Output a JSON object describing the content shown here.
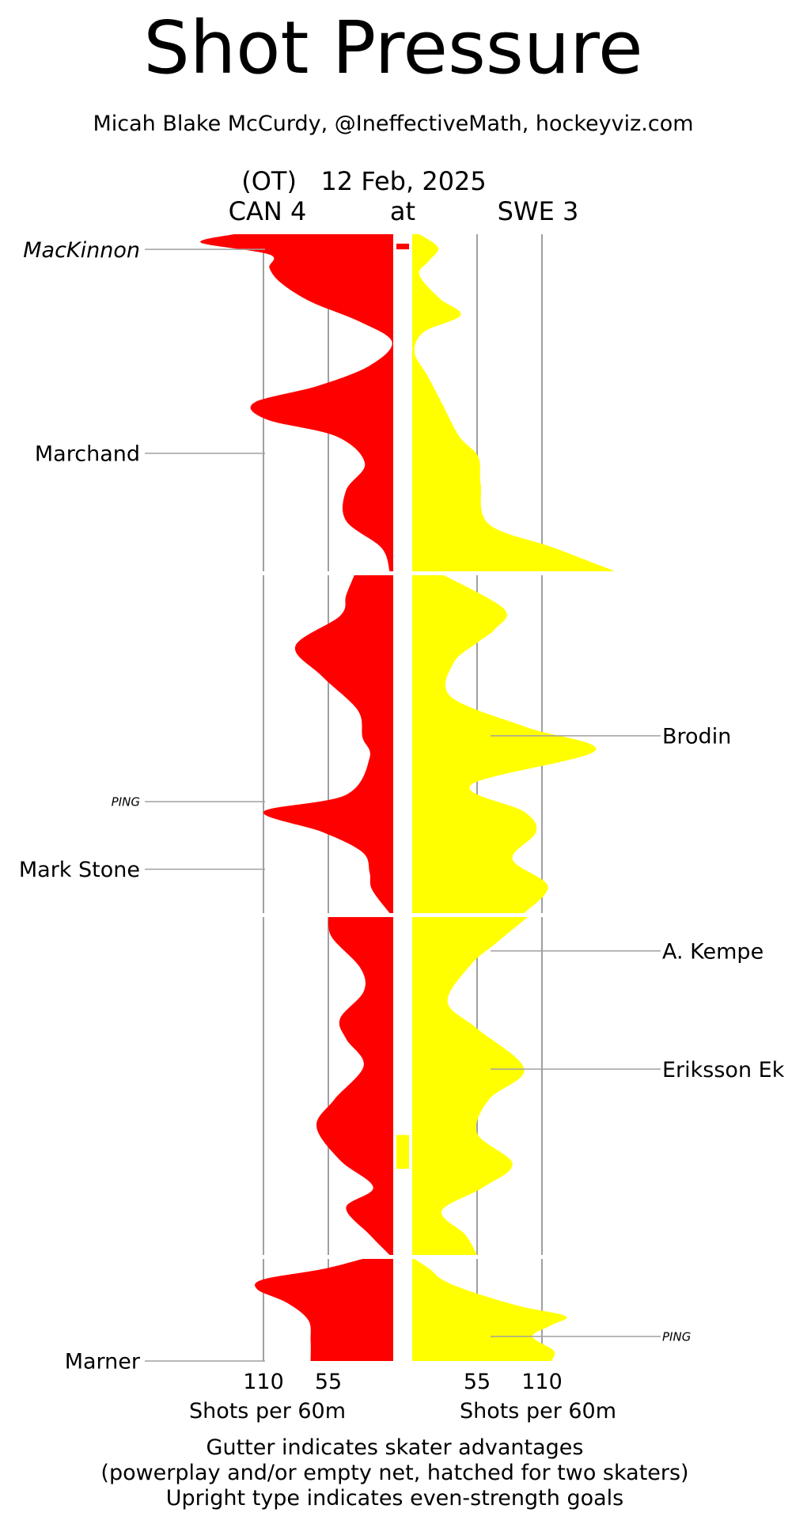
{
  "title": "Shot Pressure",
  "subtitle": "Micah Blake McCurdy, @IneffectiveMath, hockeyviz.com",
  "header": {
    "line1": "(OT)   12 Feb, 2025",
    "away": "CAN 4",
    "at": "at",
    "home": "SWE 3"
  },
  "colors": {
    "away": "#ff0000",
    "home": "#ffff00",
    "grid": "#a0a0a0"
  },
  "footer": {
    "line1": "Gutter indicates skater advantages",
    "line2": "(powerplay and/or empty net, hatched for two skaters)",
    "line3": "Upright type indicates even-strength goals"
  },
  "chart_data": {
    "type": "area",
    "orientation": "vertical",
    "periods": 4,
    "xlabel_left": "Shots per 60m",
    "xlabel_right": "Shots per 60m",
    "ticks_left": [
      110,
      55
    ],
    "ticks_right": [
      55,
      110
    ],
    "series": [
      {
        "name": "CAN 4",
        "side": "left",
        "unit": "shots per 60m",
        "periods": [
          [
            [
              0.0,
              135
            ],
            [
              0.025,
              163
            ],
            [
              0.06,
              105
            ],
            [
              0.1,
              105
            ],
            [
              0.145,
              95
            ],
            [
              0.2,
              70
            ],
            [
              0.26,
              28
            ],
            [
              0.32,
              1
            ],
            [
              0.39,
              20
            ],
            [
              0.45,
              64
            ],
            [
              0.5,
              118
            ],
            [
              0.55,
              107
            ],
            [
              0.6,
              48
            ],
            [
              0.68,
              24
            ],
            [
              0.76,
              40
            ],
            [
              0.85,
              40
            ],
            [
              0.93,
              10
            ],
            [
              1.0,
              3
            ]
          ],
          [
            [
              0.0,
              33
            ],
            [
              0.06,
              40
            ],
            [
              0.12,
              45
            ],
            [
              0.21,
              83
            ],
            [
              0.3,
              60
            ],
            [
              0.4,
              30
            ],
            [
              0.48,
              26
            ],
            [
              0.54,
              20
            ],
            [
              0.65,
              40
            ],
            [
              0.7,
              110
            ],
            [
              0.76,
              60
            ],
            [
              0.82,
              26
            ],
            [
              0.88,
              20
            ],
            [
              0.93,
              18
            ],
            [
              1.0,
              3
            ]
          ],
          [
            [
              0.0,
              55
            ],
            [
              0.06,
              52
            ],
            [
              0.15,
              28
            ],
            [
              0.22,
              25
            ],
            [
              0.3,
              45
            ],
            [
              0.36,
              40
            ],
            [
              0.44,
              25
            ],
            [
              0.54,
              50
            ],
            [
              0.62,
              65
            ],
            [
              0.72,
              45
            ],
            [
              0.8,
              17
            ],
            [
              0.86,
              40
            ],
            [
              0.94,
              20
            ],
            [
              1.0,
              3
            ]
          ],
          [
            [
              0.0,
              26
            ],
            [
              0.1,
              60
            ],
            [
              0.2,
              110
            ],
            [
              0.3,
              115
            ],
            [
              0.43,
              90
            ],
            [
              0.6,
              72
            ],
            [
              0.8,
              70
            ],
            [
              1.0,
              70
            ]
          ]
        ]
      },
      {
        "name": "SWE 3",
        "side": "right",
        "unit": "shots per 60m",
        "periods": [
          [
            [
              0.0,
              6
            ],
            [
              0.04,
              22
            ],
            [
              0.08,
              14
            ],
            [
              0.12,
              6
            ],
            [
              0.19,
              23
            ],
            [
              0.24,
              41
            ],
            [
              0.29,
              10
            ],
            [
              0.35,
              2
            ],
            [
              0.42,
              13
            ],
            [
              0.5,
              25
            ],
            [
              0.6,
              40
            ],
            [
              0.66,
              56
            ],
            [
              0.74,
              58
            ],
            [
              0.86,
              65
            ],
            [
              0.93,
              120
            ],
            [
              1.0,
              172
            ]
          ],
          [
            [
              0.0,
              27
            ],
            [
              0.1,
              78
            ],
            [
              0.16,
              70
            ],
            [
              0.2,
              55
            ],
            [
              0.26,
              35
            ],
            [
              0.36,
              33
            ],
            [
              0.45,
              97
            ],
            [
              0.52,
              155
            ],
            [
              0.62,
              50
            ],
            [
              0.7,
              95
            ],
            [
              0.76,
              105
            ],
            [
              0.84,
              85
            ],
            [
              0.92,
              115
            ],
            [
              1.0,
              95
            ]
          ],
          [
            [
              0.0,
              98
            ],
            [
              0.08,
              70
            ],
            [
              0.14,
              50
            ],
            [
              0.25,
              30
            ],
            [
              0.33,
              55
            ],
            [
              0.45,
              95
            ],
            [
              0.54,
              65
            ],
            [
              0.64,
              55
            ],
            [
              0.73,
              85
            ],
            [
              0.8,
              60
            ],
            [
              0.87,
              25
            ],
            [
              0.94,
              45
            ],
            [
              1.0,
              55
            ]
          ],
          [
            [
              0.0,
              2
            ],
            [
              0.1,
              15
            ],
            [
              0.2,
              25
            ],
            [
              0.3,
              45
            ],
            [
              0.46,
              90
            ],
            [
              0.56,
              130
            ],
            [
              0.65,
              118
            ],
            [
              0.76,
              102
            ],
            [
              0.9,
              120
            ],
            [
              1.0,
              118
            ]
          ]
        ]
      }
    ],
    "gutter": [
      {
        "team": "CAN 4",
        "period": 1,
        "start": 0.028,
        "end": 0.045
      },
      {
        "team": "SWE 3",
        "period": 3,
        "start": 0.645,
        "end": 0.745
      }
    ],
    "annotations": [
      {
        "label": "MacKinnon",
        "side": "left",
        "period": 1,
        "pos": 0.045,
        "style": "italic",
        "size": "large"
      },
      {
        "label": "Marchand",
        "side": "left",
        "period": 1,
        "pos": 0.65,
        "style": "normal",
        "size": "large"
      },
      {
        "label": "Brodin",
        "side": "right",
        "period": 2,
        "pos": 0.475,
        "style": "normal",
        "size": "large"
      },
      {
        "label": "PING",
        "side": "left",
        "period": 2,
        "pos": 0.67,
        "style": "italic",
        "size": "small"
      },
      {
        "label": "Mark Stone",
        "side": "left",
        "period": 2,
        "pos": 0.87,
        "style": "normal",
        "size": "large"
      },
      {
        "label": "A. Kempe",
        "side": "right",
        "period": 3,
        "pos": 0.1,
        "style": "normal",
        "size": "large"
      },
      {
        "label": "Eriksson Ek",
        "side": "right",
        "period": 3,
        "pos": 0.45,
        "style": "normal",
        "size": "large"
      },
      {
        "label": "PING",
        "side": "right",
        "period": 4,
        "pos": 0.76,
        "style": "italic",
        "size": "small"
      },
      {
        "label": "Marner",
        "side": "left",
        "period": 4,
        "pos": 1.0,
        "style": "normal",
        "size": "large"
      }
    ]
  }
}
